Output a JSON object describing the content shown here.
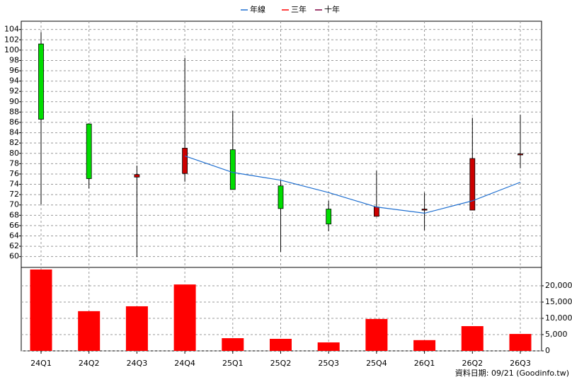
{
  "chart_data": [
    {
      "type": "candlestick",
      "open": [
        101.2,
        85.7,
        75.4,
        76.1,
        80.7,
        73.7,
        69.2,
        67.8,
        69.0,
        69.0,
        79.8
      ],
      "high": [
        103.5,
        85.8,
        77.6,
        98.5,
        88.2,
        74.8,
        70.8,
        76.6,
        72.4,
        86.9,
        87.5
      ],
      "low": [
        70.1,
        73.2,
        59.9,
        74.5,
        73.0,
        60.9,
        64.9,
        67.8,
        65.1,
        69.0,
        77.1
      ],
      "close": [
        86.6,
        75.1,
        75.9,
        81.0,
        73.0,
        69.3,
        66.3,
        69.6,
        69.2,
        79.0,
        79.9
      ],
      "up_color": "#cc0000",
      "down_color": "#00dd00",
      "series": [
        {
          "name": "年線",
          "color": "#1f6fd0",
          "values": [
            null,
            null,
            null,
            79.5,
            76.3,
            74.8,
            72.4,
            69.6,
            68.4,
            70.8,
            74.4
          ]
        },
        {
          "name": "三年",
          "color": "#ff0000",
          "values": [
            null,
            null,
            null,
            null,
            null,
            null,
            null,
            null,
            null,
            null,
            null
          ]
        },
        {
          "name": "十年",
          "color": "#800040",
          "values": [
            null,
            null,
            null,
            null,
            null,
            null,
            null,
            null,
            null,
            null,
            null
          ]
        }
      ],
      "ylim": [
        57.9,
        105.6
      ],
      "yticks": [
        60,
        62,
        64,
        66,
        68,
        70,
        72,
        74,
        76,
        78,
        80,
        82,
        84,
        86,
        88,
        90,
        92,
        94,
        96,
        98,
        100,
        102,
        104
      ],
      "grid": true
    },
    {
      "type": "bar",
      "categories": [
        "24Q1",
        "24Q2",
        "24Q3",
        "24Q4",
        "25Q1",
        "25Q2",
        "25Q3",
        "25Q4",
        "26Q1",
        "26Q2",
        "26Q3"
      ],
      "values": [
        25000,
        12200,
        13700,
        20400,
        3900,
        3700,
        2600,
        9800,
        3300,
        7600,
        5200
      ],
      "color": "#ff0000",
      "ylim": [
        0,
        25650
      ],
      "yticks": [
        0,
        {
          "value": 5000,
          "label": "5,000"
        },
        {
          "value": 10000,
          "label": "10,000"
        },
        {
          "value": 15000,
          "label": "15,000"
        },
        {
          "value": 20000,
          "label": "20,000"
        }
      ],
      "grid": true,
      "footer": "資料日期: 09/21  (Goodinfo.tw)"
    }
  ]
}
